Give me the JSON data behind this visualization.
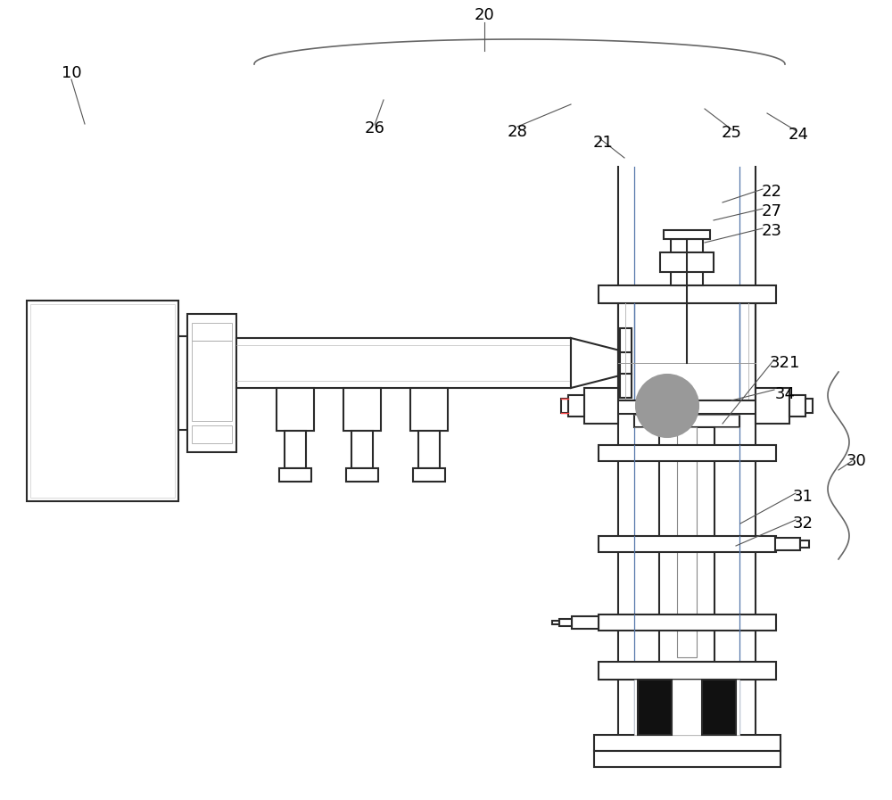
{
  "bg_color": "#ffffff",
  "line_color": "#2a2a2a",
  "light_line": "#888888",
  "blue_line": "#5577aa",
  "green_line": "#88aa66",
  "fig_width": 10.0,
  "fig_height": 8.97,
  "label_fontsize": 13
}
